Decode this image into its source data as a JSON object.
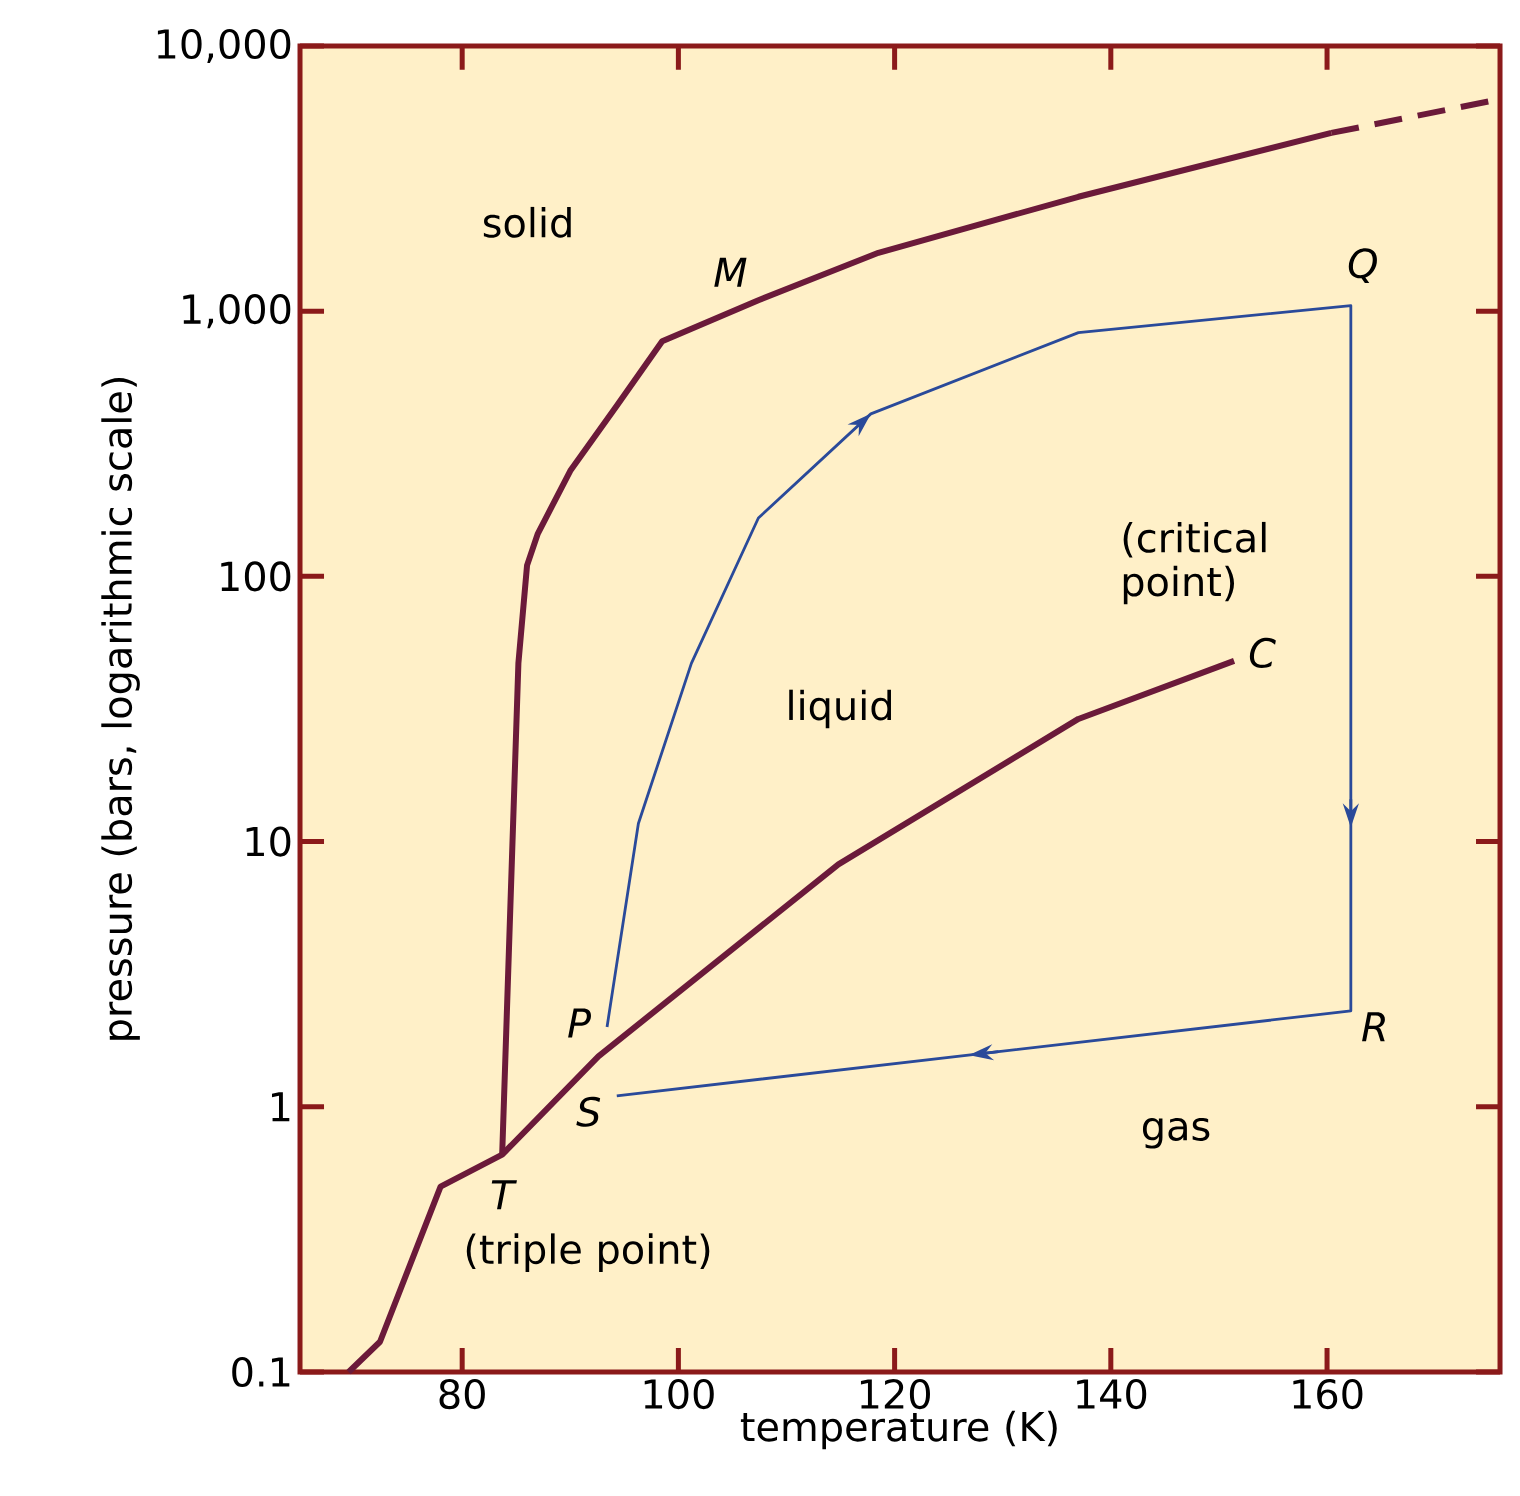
{
  "chart_data": {
    "type": "line",
    "xlabel": "temperature (K)",
    "ylabel": "pressure (bars, logarithmic scale)",
    "log": "y",
    "xlim": [
      65,
      176
    ],
    "ylim": [
      0.1,
      10000
    ],
    "xticks": [
      80,
      100,
      120,
      140,
      160
    ],
    "yticks": [
      {
        "value": 0.1,
        "label": "0.1"
      },
      1,
      10,
      100,
      {
        "value": 1000,
        "label": "1,000"
      },
      {
        "value": 10000,
        "label": "10,000"
      }
    ],
    "series": [
      {
        "color": "#6b1a3a",
        "x": [
          83.7,
          85.2,
          86,
          87,
          90,
          94.3,
          98.5,
          107.4,
          118.5,
          137,
          160.4
        ],
        "values": [
          0.66,
          47,
          110,
          145,
          250,
          440,
          770,
          1100,
          1660,
          2700,
          4700
        ]
      },
      {
        "color": "#6b1a3a",
        "line_style": "dashed",
        "x": [
          160.4,
          176
        ],
        "values": [
          4700,
          6300
        ]
      },
      {
        "color": "#6b1a3a",
        "x": [
          69.5,
          72.4,
          78,
          83.7,
          92.6,
          114.8,
          137,
          151.4
        ],
        "values": [
          0.1,
          0.13,
          0.5,
          0.66,
          1.55,
          8.2,
          29,
          48
        ]
      },
      {
        "color": "#2a4a9a",
        "x": [
          93.4,
          96.3,
          101.2,
          107.4,
          117.8,
          137,
          162.2,
          162.2,
          94.3
        ],
        "values": [
          2.0,
          11.7,
          47,
          166,
          410,
          830,
          1050,
          2.3,
          1.1
        ]
      }
    ],
    "annotations": [
      "solid",
      {
        "text": "M",
        "x": 107.4,
        "y": 1100
      },
      {
        "text": "Q",
        "x": 162.2,
        "y": 1050
      },
      "(critical point)",
      {
        "text": "C",
        "x": 151.4,
        "y": 48
      },
      "liquid",
      {
        "text": "P",
        "x": 93.4,
        "y": 2.0
      },
      {
        "text": "R",
        "x": 162.2,
        "y": 2.3
      },
      {
        "text": "S",
        "x": 94.3,
        "y": 1.1
      },
      "gas",
      {
        "text": "T",
        "x": 83.7,
        "y": 0.66
      },
      "(triple point)"
    ]
  }
}
